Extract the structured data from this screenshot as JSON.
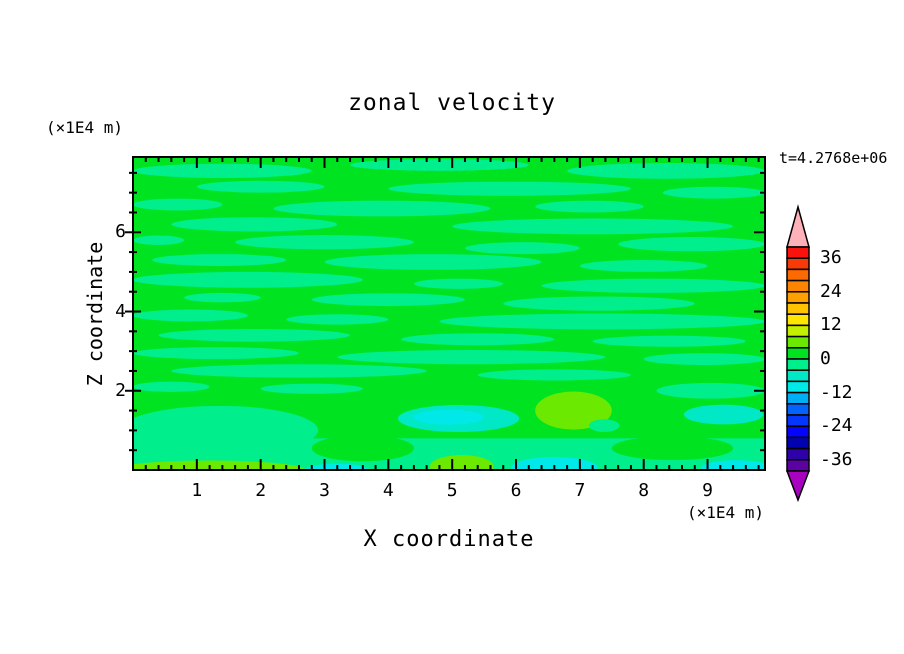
{
  "chart_data": {
    "type": "filled_contour",
    "title": "zonal velocity",
    "time_annotation": "t=4.2768e+06",
    "xlabel": "X coordinate",
    "ylabel": "Z coordinate",
    "x_unit": "(×1E4 m)",
    "z_unit": "(×1E4 m)",
    "x_range": [
      0,
      9.9
    ],
    "z_range": [
      0,
      7.9
    ],
    "x_major_ticks": [
      1,
      2,
      3,
      4,
      5,
      6,
      7,
      8,
      9
    ],
    "x_minor_step": 0.2,
    "z_major_ticks": [
      2,
      4,
      6
    ],
    "z_minor_step": 0.5,
    "grid": false,
    "colorbar": {
      "levels_min": -40,
      "levels_max": 40,
      "level_step": 4,
      "tick_values": [
        36,
        24,
        12,
        0,
        -12,
        -24,
        -36
      ],
      "tick_labels": [
        "36",
        "24",
        "12",
        "0",
        "-12",
        "-24",
        "-36"
      ],
      "segment_colors_top_to_bottom": [
        "#fa120d",
        "#f63b09",
        "#fd6a02",
        "#fe8501",
        "#ff9f00",
        "#ffc300",
        "#ffe600",
        "#c4ef00",
        "#6ce900",
        "#00e320",
        "#00ee8b",
        "#00e8c6",
        "#00e8e8",
        "#00aef5",
        "#0563fd",
        "#0436fe",
        "#0303fe",
        "#0202b0",
        "#2e02a8",
        "#5c02a2"
      ],
      "over_arrow_color": "#ffb1ba",
      "under_arrow_color": "#a602c0",
      "outline_color": "#000000"
    },
    "field": {
      "background_value": 2,
      "streak_value": -2,
      "streaks": [
        {
          "x0": 0.0,
          "x1": 2.8,
          "z": 7.55,
          "h": 0.18
        },
        {
          "x0": 3.4,
          "x1": 6.2,
          "z": 7.7,
          "h": 0.15
        },
        {
          "x0": 6.8,
          "x1": 9.9,
          "z": 7.55,
          "h": 0.2
        },
        {
          "x0": 1.0,
          "x1": 3.0,
          "z": 7.15,
          "h": 0.15
        },
        {
          "x0": 4.0,
          "x1": 7.8,
          "z": 7.1,
          "h": 0.18
        },
        {
          "x0": 8.3,
          "x1": 9.9,
          "z": 7.0,
          "h": 0.15
        },
        {
          "x0": 0.0,
          "x1": 1.4,
          "z": 6.7,
          "h": 0.15
        },
        {
          "x0": 2.2,
          "x1": 5.6,
          "z": 6.6,
          "h": 0.2
        },
        {
          "x0": 6.3,
          "x1": 8.0,
          "z": 6.65,
          "h": 0.15
        },
        {
          "x0": 0.6,
          "x1": 3.2,
          "z": 6.2,
          "h": 0.18
        },
        {
          "x0": 5.0,
          "x1": 9.4,
          "z": 6.15,
          "h": 0.2
        },
        {
          "x0": 0.0,
          "x1": 0.8,
          "z": 5.8,
          "h": 0.12
        },
        {
          "x0": 1.6,
          "x1": 4.4,
          "z": 5.75,
          "h": 0.18
        },
        {
          "x0": 5.2,
          "x1": 7.0,
          "z": 5.6,
          "h": 0.15
        },
        {
          "x0": 7.6,
          "x1": 9.9,
          "z": 5.7,
          "h": 0.18
        },
        {
          "x0": 0.3,
          "x1": 2.4,
          "z": 5.3,
          "h": 0.15
        },
        {
          "x0": 3.0,
          "x1": 6.4,
          "z": 5.25,
          "h": 0.2
        },
        {
          "x0": 7.0,
          "x1": 9.0,
          "z": 5.15,
          "h": 0.15
        },
        {
          "x0": 0.0,
          "x1": 3.6,
          "z": 4.8,
          "h": 0.2
        },
        {
          "x0": 4.4,
          "x1": 5.8,
          "z": 4.7,
          "h": 0.13
        },
        {
          "x0": 6.4,
          "x1": 9.9,
          "z": 4.65,
          "h": 0.18
        },
        {
          "x0": 0.8,
          "x1": 2.0,
          "z": 4.35,
          "h": 0.12
        },
        {
          "x0": 2.8,
          "x1": 5.2,
          "z": 4.3,
          "h": 0.16
        },
        {
          "x0": 5.8,
          "x1": 8.8,
          "z": 4.2,
          "h": 0.18
        },
        {
          "x0": 0.0,
          "x1": 1.8,
          "z": 3.9,
          "h": 0.15
        },
        {
          "x0": 2.4,
          "x1": 4.0,
          "z": 3.8,
          "h": 0.13
        },
        {
          "x0": 4.8,
          "x1": 9.9,
          "z": 3.75,
          "h": 0.2
        },
        {
          "x0": 0.4,
          "x1": 3.4,
          "z": 3.4,
          "h": 0.16
        },
        {
          "x0": 4.2,
          "x1": 6.6,
          "z": 3.3,
          "h": 0.15
        },
        {
          "x0": 7.2,
          "x1": 9.6,
          "z": 3.25,
          "h": 0.14
        },
        {
          "x0": 0.0,
          "x1": 2.6,
          "z": 2.95,
          "h": 0.15
        },
        {
          "x0": 3.2,
          "x1": 7.4,
          "z": 2.85,
          "h": 0.18
        },
        {
          "x0": 8.0,
          "x1": 9.9,
          "z": 2.8,
          "h": 0.15
        },
        {
          "x0": 0.6,
          "x1": 4.6,
          "z": 2.5,
          "h": 0.17
        },
        {
          "x0": 5.4,
          "x1": 7.8,
          "z": 2.4,
          "h": 0.14
        },
        {
          "x0": 0.0,
          "x1": 1.2,
          "z": 2.1,
          "h": 0.13
        },
        {
          "x0": 2.0,
          "x1": 3.6,
          "z": 2.05,
          "h": 0.13
        },
        {
          "x0": 8.2,
          "x1": 9.9,
          "z": 2.0,
          "h": 0.2
        }
      ],
      "features": [
        {
          "shape": "rect",
          "x0": 0.0,
          "x1": 9.9,
          "z0": 0.0,
          "z1": 0.8,
          "value": -2
        },
        {
          "shape": "ellipse",
          "cx": 3.6,
          "cz": 0.55,
          "rx": 0.8,
          "rz": 0.33,
          "value": 2
        },
        {
          "shape": "ellipse",
          "cx": 8.45,
          "cz": 0.55,
          "rx": 0.95,
          "rz": 0.3,
          "value": 2
        },
        {
          "shape": "ellipse",
          "cx": 1.35,
          "cz": 1.0,
          "rx": 1.55,
          "rz": 0.62,
          "value": -2
        },
        {
          "shape": "ellipse",
          "cx": 5.1,
          "cz": 1.3,
          "rx": 0.95,
          "rz": 0.34,
          "value": -6
        },
        {
          "shape": "ellipse",
          "cx": 4.95,
          "cz": 1.33,
          "rx": 0.55,
          "rz": 0.19,
          "value": -10
        },
        {
          "shape": "ellipse",
          "cx": 6.9,
          "cz": 1.5,
          "rx": 0.6,
          "rz": 0.48,
          "value": 6
        },
        {
          "shape": "ellipse",
          "cx": 7.38,
          "cz": 1.12,
          "rx": 0.24,
          "rz": 0.16,
          "value": -2
        },
        {
          "shape": "ellipse",
          "cx": 9.25,
          "cz": 1.4,
          "rx": 0.62,
          "rz": 0.25,
          "value": -6
        },
        {
          "shape": "ellipse",
          "cx": 1.2,
          "cz": 0.0,
          "rx": 1.5,
          "rz": 0.24,
          "value": 6
        },
        {
          "shape": "ellipse",
          "cx": 5.15,
          "cz": 0.08,
          "rx": 0.5,
          "rz": 0.3,
          "value": 6
        },
        {
          "shape": "ellipse",
          "cx": 6.6,
          "cz": 0.05,
          "rx": 0.68,
          "rz": 0.28,
          "value": -10
        },
        {
          "shape": "ellipse",
          "cx": 3.2,
          "cz": 0.0,
          "rx": 0.5,
          "rz": 0.16,
          "value": -10
        },
        {
          "shape": "ellipse",
          "cx": 9.45,
          "cz": 0.05,
          "rx": 0.55,
          "rz": 0.2,
          "value": -10
        }
      ]
    }
  }
}
